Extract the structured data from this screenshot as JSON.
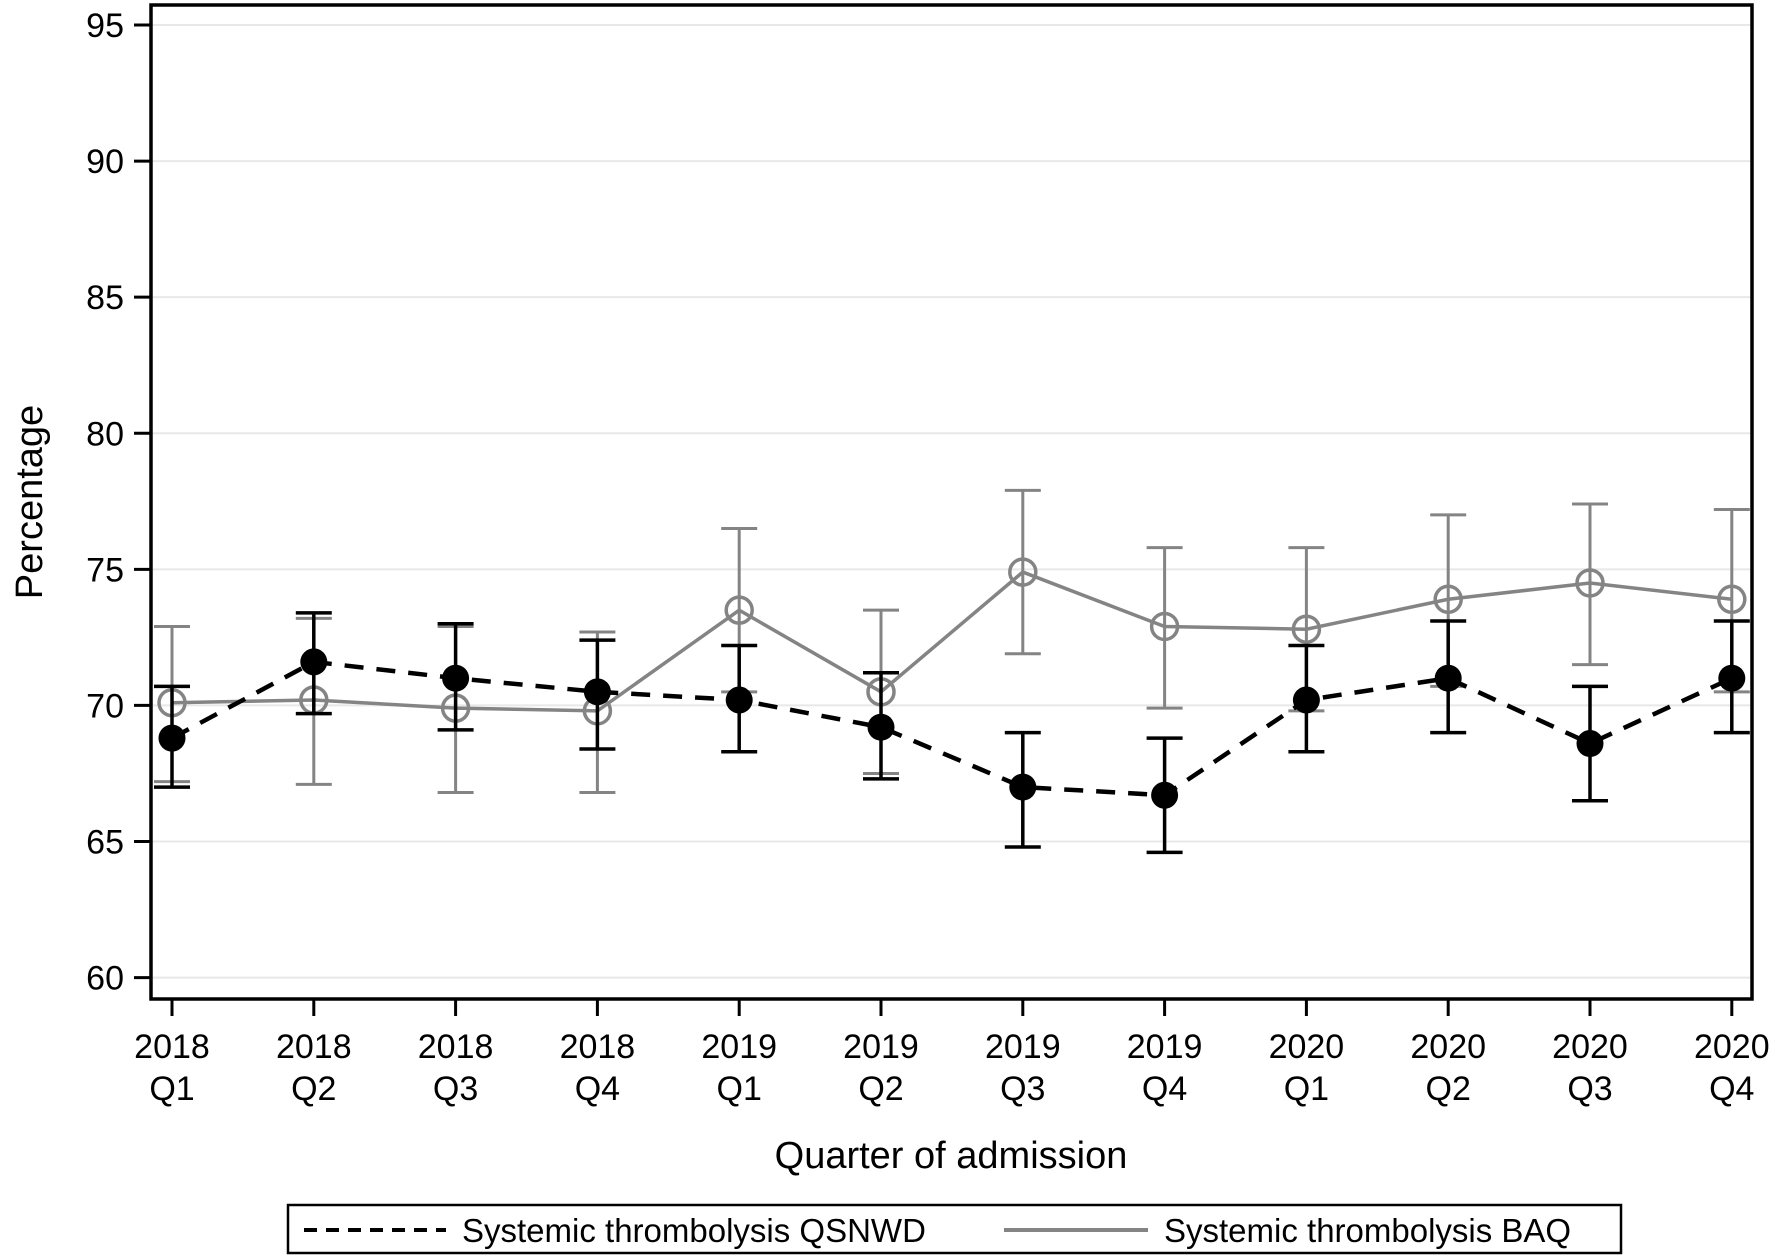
{
  "figure": {
    "ylabel": "Percentage",
    "xlabel": "Quarter of admission"
  },
  "legend": {
    "entries": [
      {
        "label": "Systemic thrombolysis QSNWD",
        "line_style": "dashed",
        "color": "#000000"
      },
      {
        "label": "Systemic thrombolysis BAQ",
        "line_style": "solid",
        "color": "#848484"
      }
    ]
  },
  "colors": {
    "background": "#ffffff",
    "axis": "#000000",
    "gridline": "#e8e8e8",
    "series_qsnwd": "#000000",
    "series_baq": "#848484"
  },
  "chart_data": {
    "type": "line",
    "title": "",
    "xlabel": "Quarter of admission",
    "ylabel": "Percentage",
    "ylim": [
      60,
      95
    ],
    "yticks": [
      60,
      65,
      70,
      75,
      80,
      85,
      90,
      95
    ],
    "grid": true,
    "legend_position": "bottom",
    "error_bars": "capped, 95% CI",
    "categories": [
      {
        "year": "2018",
        "quarter": "Q1"
      },
      {
        "year": "2018",
        "quarter": "Q2"
      },
      {
        "year": "2018",
        "quarter": "Q3"
      },
      {
        "year": "2018",
        "quarter": "Q4"
      },
      {
        "year": "2019",
        "quarter": "Q1"
      },
      {
        "year": "2019",
        "quarter": "Q2"
      },
      {
        "year": "2019",
        "quarter": "Q3"
      },
      {
        "year": "2019",
        "quarter": "Q4"
      },
      {
        "year": "2020",
        "quarter": "Q1"
      },
      {
        "year": "2020",
        "quarter": "Q2"
      },
      {
        "year": "2020",
        "quarter": "Q3"
      },
      {
        "year": "2020",
        "quarter": "Q4"
      }
    ],
    "series": [
      {
        "name": "Systemic thrombolysis BAQ",
        "key": "baq",
        "color": "#848484",
        "line_style": "solid",
        "marker": "open-circle",
        "values": [
          70.1,
          70.2,
          69.9,
          69.8,
          73.5,
          70.5,
          74.9,
          72.9,
          72.8,
          73.9,
          74.5,
          73.9
        ],
        "ci_lower": [
          67.2,
          67.1,
          66.8,
          66.8,
          70.5,
          67.5,
          71.9,
          69.9,
          69.8,
          70.7,
          71.5,
          70.5
        ],
        "ci_upper": [
          72.9,
          73.2,
          72.9,
          72.7,
          76.5,
          73.5,
          77.9,
          75.8,
          75.8,
          77.0,
          77.4,
          77.2
        ]
      },
      {
        "name": "Systemic thrombolysis QSNWD",
        "key": "qsnwd",
        "color": "#000000",
        "line_style": "dashed",
        "marker": "filled-circle",
        "values": [
          68.8,
          71.6,
          71.0,
          70.5,
          70.2,
          69.2,
          67.0,
          66.7,
          70.2,
          71.0,
          68.6,
          71.0
        ],
        "ci_lower": [
          67.0,
          69.7,
          69.1,
          68.4,
          68.3,
          67.3,
          64.8,
          64.6,
          68.3,
          69.0,
          66.5,
          69.0
        ],
        "ci_upper": [
          70.7,
          73.4,
          73.0,
          72.4,
          72.2,
          71.2,
          69.0,
          68.8,
          72.2,
          73.1,
          70.7,
          73.1
        ]
      }
    ]
  }
}
